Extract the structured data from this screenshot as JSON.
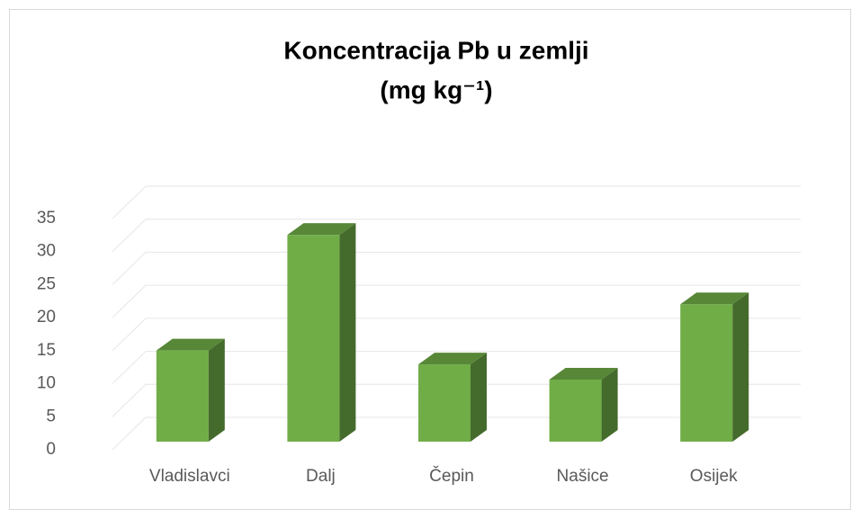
{
  "chart_data": {
    "type": "bar3d",
    "title": [
      "Koncentracija Pb u zemlji",
      "(mg kg⁻¹)"
    ],
    "categories": [
      "Vladislavci",
      "Dalj",
      "Čepin",
      "Našice",
      "Osijek"
    ],
    "values": [
      13.8,
      31.3,
      11.7,
      9.4,
      20.8
    ],
    "color": "#70ad47",
    "ylim": [
      0,
      35
    ],
    "yticks": [
      0,
      5,
      10,
      15,
      20,
      25,
      30,
      35
    ],
    "grid": true
  }
}
